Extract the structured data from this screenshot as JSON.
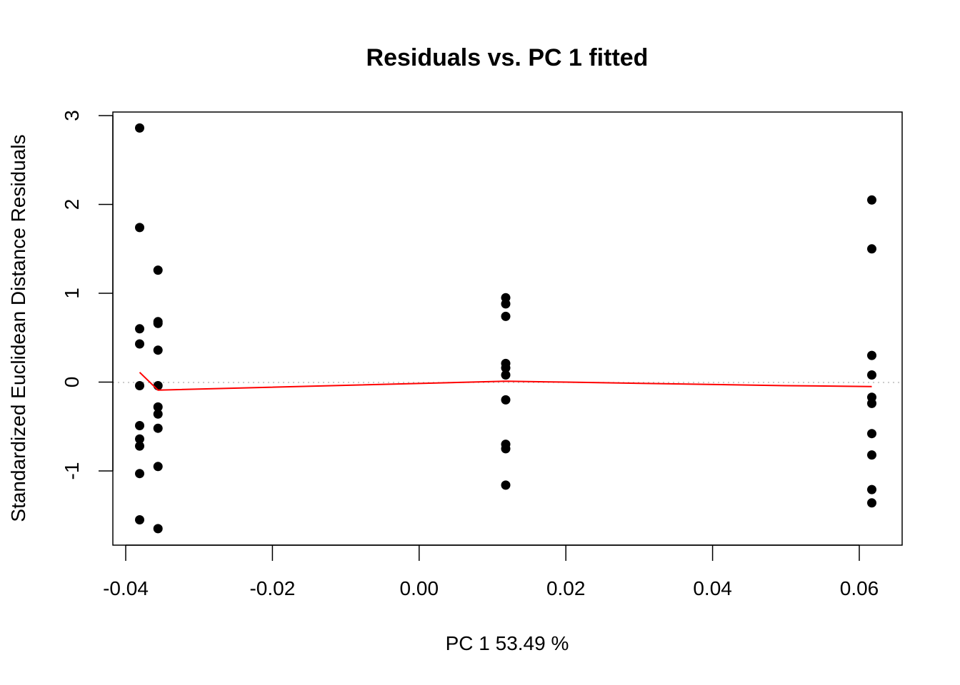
{
  "chart_data": {
    "type": "scatter",
    "title": "Residuals vs. PC 1 fitted",
    "xlabel": "PC 1 53.49 %",
    "ylabel": "Standardized Euclidean Distance Residuals",
    "xlim": [
      -0.04,
      0.066
    ],
    "ylim": [
      -1.82,
      3.05
    ],
    "x_ticks": [
      -0.04,
      -0.02,
      0.0,
      0.02,
      0.04,
      0.06
    ],
    "x_tick_labels": [
      "-0.04",
      "-0.02",
      "0.00",
      "0.02",
      "0.04",
      "0.06"
    ],
    "y_ticks": [
      -1,
      0,
      1,
      2,
      3
    ],
    "y_tick_labels": [
      "-1",
      "0",
      "1",
      "2",
      "3"
    ],
    "reference_line": {
      "y": 0,
      "style": "dotted",
      "color": "#bbbbbb"
    },
    "points": {
      "color": "#000000",
      "series": [
        {
          "x": -0.0381,
          "y": [
            2.86,
            1.74,
            0.6,
            0.43,
            -0.04,
            -0.49,
            -0.64,
            -0.72,
            -1.03,
            -1.55
          ]
        },
        {
          "x": -0.0356,
          "y": [
            1.26,
            0.68,
            0.66,
            0.36,
            -0.04,
            -0.28,
            -0.36,
            -0.52,
            -0.95,
            -1.65
          ]
        },
        {
          "x": 0.0118,
          "y": [
            0.95,
            0.88,
            0.74,
            0.21,
            0.16,
            0.08,
            -0.2,
            -0.7,
            -0.75,
            -1.16
          ]
        },
        {
          "x": 0.0617,
          "y": [
            2.05,
            1.5,
            0.3,
            0.08,
            -0.17,
            -0.24,
            -0.58,
            -0.82,
            -1.21,
            -1.36
          ]
        }
      ]
    },
    "smooth_line": {
      "color": "#ff0000",
      "x": [
        -0.0381,
        -0.0356,
        0.0118,
        0.02,
        0.05,
        0.0617
      ],
      "y": [
        0.11,
        -0.09,
        0.01,
        0.0,
        -0.04,
        -0.05
      ]
    }
  }
}
